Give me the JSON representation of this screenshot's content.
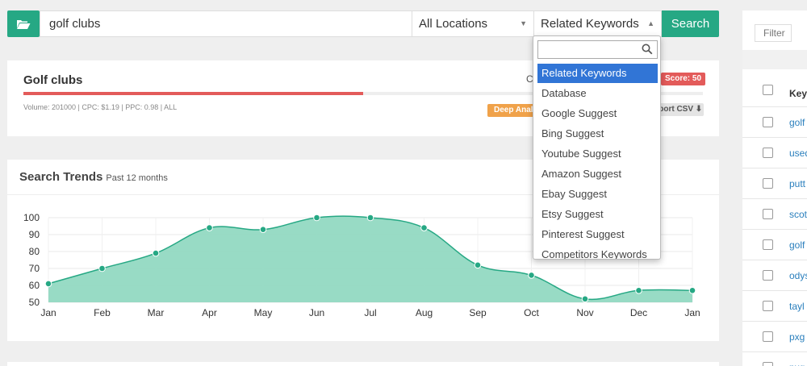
{
  "search": {
    "keyword": "golf clubs",
    "location": "All Locations",
    "source": "Related Keywords",
    "search_label": "Search"
  },
  "keyword_card": {
    "title": "Golf clubs",
    "meta": "Volume: 201000 | CPC: $1.19 | PPC: 0.98 | ALL",
    "c_label": "C",
    "score_label": "Score: 50",
    "score": 50,
    "deep_label": "Deep Analysis",
    "csv_label": "Export CSV ⬇"
  },
  "trends": {
    "title": "Search Trends",
    "subtitle": "Past 12 months"
  },
  "chart_data": {
    "type": "area",
    "title": "Search Trends",
    "subtitle": "Past 12 months",
    "categories": [
      "Jan",
      "Feb",
      "Mar",
      "Apr",
      "May",
      "Jun",
      "Jul",
      "Aug",
      "Sep",
      "Oct",
      "Nov",
      "Dec",
      "Jan"
    ],
    "values": [
      61,
      70,
      79,
      94,
      93,
      100,
      100,
      94,
      72,
      66,
      52,
      57,
      57
    ],
    "ylim": [
      50,
      100
    ],
    "yticks": [
      50,
      60,
      70,
      80,
      90,
      100
    ],
    "grid": true,
    "color": "#26a884",
    "fill": "#92d9c2"
  },
  "dropdown": {
    "search_value": "",
    "items": [
      {
        "label": "Related Keywords",
        "active": true
      },
      {
        "label": "Database",
        "active": false
      },
      {
        "label": "Google Suggest",
        "active": false
      },
      {
        "label": "Bing Suggest",
        "active": false
      },
      {
        "label": "Youtube Suggest",
        "active": false
      },
      {
        "label": "Amazon Suggest",
        "active": false
      },
      {
        "label": "Ebay Suggest",
        "active": false
      },
      {
        "label": "Etsy Suggest",
        "active": false
      },
      {
        "label": "Pinterest Suggest",
        "active": false
      },
      {
        "label": "Competitors Keywords",
        "active": false
      }
    ]
  },
  "right_panel": {
    "filter_placeholder": "Filter",
    "header_label": "Key",
    "rows": [
      "golf",
      "used",
      "putt",
      "scot",
      "golf",
      "odys",
      "tayl",
      "pxg",
      "pxg"
    ]
  }
}
